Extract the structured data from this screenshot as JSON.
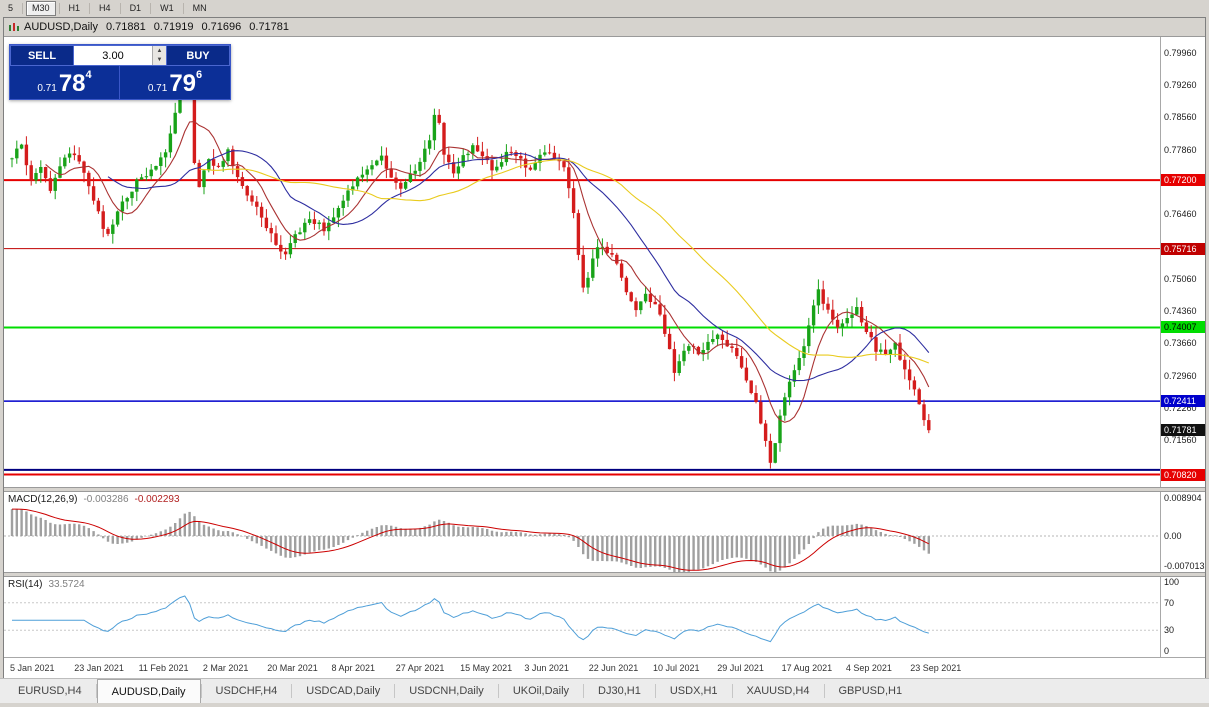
{
  "timeframe_toolbar": {
    "items": [
      "5",
      "M30",
      "H1",
      "H4",
      "D1",
      "W1",
      "MN"
    ],
    "active": "M30"
  },
  "chart": {
    "title": "AUDUSD,Daily",
    "open": "0.71881",
    "high": "0.71919",
    "low": "0.71696",
    "close": "0.71781"
  },
  "trade_panel": {
    "sell_label": "SELL",
    "buy_label": "BUY",
    "volume": "3.00",
    "sell_price": {
      "prefix": "0.71",
      "big": "78",
      "sup": "4"
    },
    "buy_price": {
      "prefix": "0.71",
      "big": "79",
      "sup": "6"
    }
  },
  "icons": {
    "up_arrow": "▲",
    "down_arrow": "▼"
  },
  "price_axis_ticks": [
    "0.79960",
    "0.79260",
    "0.78560",
    "0.77860",
    "0.77160",
    "0.76460",
    "0.75760",
    "0.75060",
    "0.74360",
    "0.73660",
    "0.72960",
    "0.72260",
    "0.71560",
    "0.70860"
  ],
  "levels": [
    {
      "value": 0.772,
      "label": "0.77200",
      "color": "#e60000",
      "width": 2,
      "text_color": "#ffffff"
    },
    {
      "value": 0.75716,
      "label": "0.75716",
      "color": "#c00000",
      "width": 1,
      "text_color": "#ffffff"
    },
    {
      "value": 0.74007,
      "label": "0.74007",
      "color": "#00dd00",
      "width": 2,
      "text_color": "#000000"
    },
    {
      "value": 0.72411,
      "label": "0.72411",
      "color": "#0000cc",
      "width": 1.5,
      "text_color": "#ffffff"
    },
    {
      "value": 0.7092,
      "label": "",
      "color": "#000080",
      "width": 2,
      "text_color": "#ffffff"
    },
    {
      "value": 0.7082,
      "label": "0.70820",
      "color": "#e60000",
      "width": 2,
      "text_color": "#ffffff"
    }
  ],
  "current_price": {
    "value": 0.71781,
    "label": "0.71781",
    "color": "#111111",
    "text_color": "#ffffff"
  },
  "indicators": {
    "macd": {
      "name": "MACD(12,26,9)",
      "value1": "-0.003286",
      "value2": "-0.002293",
      "axis": [
        "0.008904",
        "0.00",
        "-0.007013"
      ]
    },
    "rsi": {
      "name": "RSI(14)",
      "value": "33.5724",
      "axis": [
        "100",
        "70",
        "30",
        "0"
      ]
    }
  },
  "date_axis": [
    "5 Jan 2021",
    "23 Jan 2021",
    "11 Feb 2021",
    "2 Mar 2021",
    "20 Mar 2021",
    "8 Apr 2021",
    "27 Apr 2021",
    "15 May 2021",
    "3 Jun 2021",
    "22 Jun 2021",
    "10 Jul 2021",
    "29 Jul 2021",
    "17 Aug 2021",
    "4 Sep 2021",
    "23 Sep 2021"
  ],
  "tabs": {
    "items": [
      "EURUSD,H4",
      "AUDUSD,Daily",
      "USDCHF,H4",
      "USDCAD,Daily",
      "USDCNH,Daily",
      "UKOil,Daily",
      "DJ30,H1",
      "USDX,H1",
      "XAUUSD,H4",
      "GBPUSD,H1"
    ],
    "active": "AUDUSD,Daily"
  },
  "chart_data": {
    "type": "candlestick",
    "symbol": "AUDUSD",
    "period": "Daily",
    "x_range": [
      "5 Jan 2021",
      "30 Sep 2021"
    ],
    "y_range": [
      0.7055,
      0.803
    ],
    "num_candles": 192,
    "last_close": 0.71781,
    "volatility": 0.0016,
    "wick": 0.0022,
    "up_color": "#18a318",
    "down_color": "#d41c1c",
    "anchors": [
      [
        0,
        0.7766
      ],
      [
        2,
        0.78
      ],
      [
        4,
        0.7715
      ],
      [
        6,
        0.7752
      ],
      [
        8,
        0.7698
      ],
      [
        11,
        0.777
      ],
      [
        13,
        0.7782
      ],
      [
        15,
        0.773
      ],
      [
        18,
        0.7645
      ],
      [
        20,
        0.7598
      ],
      [
        23,
        0.7668
      ],
      [
        26,
        0.7718
      ],
      [
        29,
        0.7745
      ],
      [
        32,
        0.7775
      ],
      [
        34,
        0.786
      ],
      [
        36,
        0.7962
      ],
      [
        37,
        0.7905
      ],
      [
        38,
        0.776
      ],
      [
        39,
        0.7712
      ],
      [
        41,
        0.777
      ],
      [
        43,
        0.7745
      ],
      [
        45,
        0.778
      ],
      [
        47,
        0.7722
      ],
      [
        49,
        0.769
      ],
      [
        51,
        0.7662
      ],
      [
        53,
        0.762
      ],
      [
        55,
        0.7582
      ],
      [
        57,
        0.7552
      ],
      [
        59,
        0.76
      ],
      [
        62,
        0.7638
      ],
      [
        65,
        0.7612
      ],
      [
        68,
        0.766
      ],
      [
        71,
        0.771
      ],
      [
        74,
        0.7748
      ],
      [
        77,
        0.7772
      ],
      [
        79,
        0.7726
      ],
      [
        81,
        0.77
      ],
      [
        83,
        0.7738
      ],
      [
        85,
        0.7758
      ],
      [
        87,
        0.7802
      ],
      [
        88,
        0.7868
      ],
      [
        89,
        0.784
      ],
      [
        90,
        0.7782
      ],
      [
        92,
        0.7736
      ],
      [
        94,
        0.7768
      ],
      [
        96,
        0.779
      ],
      [
        98,
        0.7772
      ],
      [
        100,
        0.7746
      ],
      [
        102,
        0.7766
      ],
      [
        104,
        0.7786
      ],
      [
        106,
        0.7762
      ],
      [
        108,
        0.7742
      ],
      [
        110,
        0.7768
      ],
      [
        112,
        0.778
      ],
      [
        114,
        0.7762
      ],
      [
        115,
        0.7748
      ],
      [
        116,
        0.7702
      ],
      [
        117,
        0.7642
      ],
      [
        118,
        0.7562
      ],
      [
        119,
        0.7484
      ],
      [
        120,
        0.7502
      ],
      [
        121,
        0.7546
      ],
      [
        122,
        0.7582
      ],
      [
        124,
        0.7564
      ],
      [
        126,
        0.7546
      ],
      [
        128,
        0.7482
      ],
      [
        130,
        0.7442
      ],
      [
        132,
        0.7468
      ],
      [
        134,
        0.7456
      ],
      [
        136,
        0.7392
      ],
      [
        138,
        0.7302
      ],
      [
        139,
        0.7332
      ],
      [
        141,
        0.7366
      ],
      [
        143,
        0.7342
      ],
      [
        145,
        0.7368
      ],
      [
        147,
        0.7392
      ],
      [
        149,
        0.7366
      ],
      [
        151,
        0.7338
      ],
      [
        153,
        0.7292
      ],
      [
        155,
        0.7232
      ],
      [
        157,
        0.7152
      ],
      [
        158,
        0.7112
      ],
      [
        159,
        0.7152
      ],
      [
        161,
        0.7256
      ],
      [
        163,
        0.7312
      ],
      [
        165,
        0.7368
      ],
      [
        167,
        0.7442
      ],
      [
        168,
        0.7476
      ],
      [
        170,
        0.7438
      ],
      [
        172,
        0.7398
      ],
      [
        174,
        0.742
      ],
      [
        176,
        0.7442
      ],
      [
        178,
        0.7396
      ],
      [
        180,
        0.7352
      ],
      [
        182,
        0.7338
      ],
      [
        184,
        0.7362
      ],
      [
        186,
        0.7312
      ],
      [
        188,
        0.7262
      ],
      [
        189,
        0.7232
      ],
      [
        190,
        0.7192
      ],
      [
        191,
        0.71781
      ]
    ],
    "moving_averages": [
      {
        "period": 8,
        "color": "#aa3333"
      },
      {
        "period": 21,
        "color": "#2e2ea0"
      },
      {
        "period": 40,
        "color": "#e9cb1e"
      }
    ],
    "macd_range": [
      -0.008,
      0.0098
    ],
    "macd_seed": {
      "e12": 0.003,
      "e26": 0.009
    },
    "macd_colors": {
      "histogram": "#a0a0a0",
      "signal": "#cc0000"
    },
    "rsi_levels": [
      70,
      30
    ],
    "rsi_color": "#4f9fd8"
  }
}
